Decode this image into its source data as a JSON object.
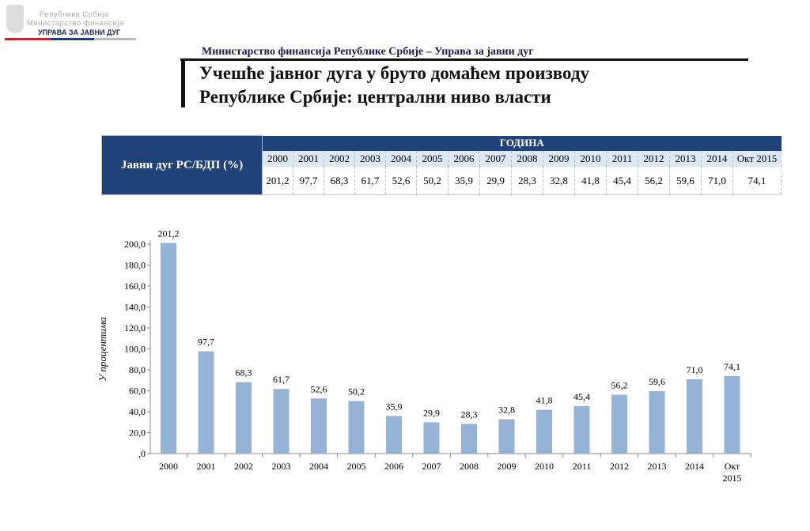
{
  "logo": {
    "line1": "Република Србија",
    "line2": "Министарство финансија",
    "line3": "УПРАВА ЗА ЈАВНИ ДУГ"
  },
  "header": {
    "ministry": "Министарство финансија Републике Србије – Управа за јавни дуг",
    "title_line1": "Учешће јавног дуга у бруто домаћем производу",
    "title_line2": "Републике Србије: централни ниво власти"
  },
  "table": {
    "row_label": "Јавни дуг РС/БДП (%)",
    "group_header": "ГОДИНА",
    "years": [
      "2000",
      "2001",
      "2002",
      "2003",
      "2004",
      "2005",
      "2006",
      "2007",
      "2008",
      "2009",
      "2010",
      "2011",
      "2012",
      "2013",
      "2014",
      "Окт 2015"
    ],
    "values": [
      "201,2",
      "97,7",
      "68,3",
      "61,7",
      "52,6",
      "50,2",
      "35,9",
      "29,9",
      "28,3",
      "32,8",
      "41,8",
      "45,4",
      "56,2",
      "59,6",
      "71,0",
      "74,1"
    ]
  },
  "chart_data": {
    "type": "bar",
    "title": "",
    "xlabel": "",
    "ylabel": "У процентима",
    "categories": [
      "2000",
      "2001",
      "2002",
      "2003",
      "2004",
      "2005",
      "2006",
      "2007",
      "2008",
      "2009",
      "2010",
      "2011",
      "2012",
      "2013",
      "2014",
      "Окт 2015"
    ],
    "values": [
      201.2,
      97.7,
      68.3,
      61.7,
      52.6,
      50.2,
      35.9,
      29.9,
      28.3,
      32.8,
      41.8,
      45.4,
      56.2,
      59.6,
      71.0,
      74.1
    ],
    "data_labels": [
      "201,2",
      "97,7",
      "68,3",
      "61,7",
      "52,6",
      "50,2",
      "35,9",
      "29,9",
      "28,3",
      "32,8",
      "41,8",
      "45,4",
      "56,2",
      "59,6",
      "71,0",
      "74,1"
    ],
    "yticks": [
      ",0",
      "20,0",
      "40,0",
      "60,0",
      "80,0",
      "100,0",
      "120,0",
      "140,0",
      "160,0",
      "180,0",
      "200,0"
    ],
    "ylim": [
      0,
      200
    ],
    "bar_color": "#95b3d7",
    "grid": false
  }
}
